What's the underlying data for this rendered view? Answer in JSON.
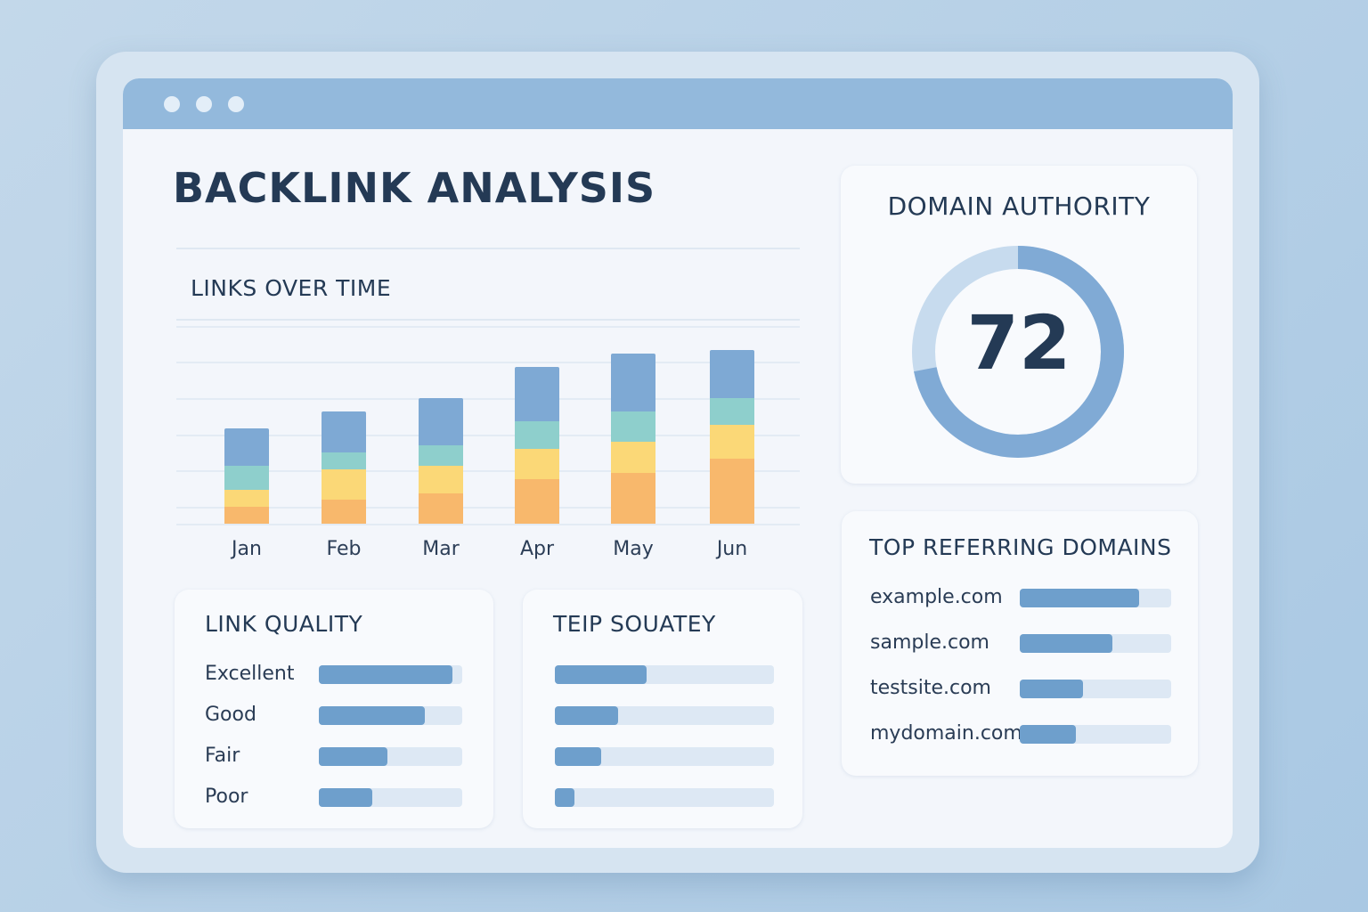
{
  "page": {
    "title": "BACKLINK ANALYSIS"
  },
  "links_over_time": {
    "title": "LINKS OVER TIME",
    "colors": [
      "#f8b86c",
      "#fbd877",
      "#8ecfcc",
      "#7ea9d4"
    ],
    "chart_data": {
      "type": "bar",
      "stacked": true,
      "categories": [
        "Jan",
        "Feb",
        "Mar",
        "Apr",
        "May",
        "Jun"
      ],
      "ylim": [
        0,
        55
      ],
      "grid": true,
      "series": [
        {
          "values": [
            5,
            7,
            9,
            13,
            15,
            19
          ]
        },
        {
          "values": [
            5,
            9,
            8,
            9,
            9,
            10
          ]
        },
        {
          "values": [
            7,
            5,
            6,
            8,
            9,
            8
          ]
        },
        {
          "values": [
            11,
            12,
            14,
            16,
            17,
            14
          ]
        }
      ]
    }
  },
  "domain_authority": {
    "title": "DOMAIN AUTHORITY",
    "value": "72",
    "percent": 72
  },
  "link_quality": {
    "title": "LINK QUALITY",
    "items": [
      {
        "label": "Excellent",
        "fraction": 0.93
      },
      {
        "label": "Good",
        "fraction": 0.74
      },
      {
        "label": "Fair",
        "fraction": 0.48
      },
      {
        "label": "Poor",
        "fraction": 0.37
      }
    ]
  },
  "second_panel": {
    "title": "TEIP SOUATEY",
    "items": [
      {
        "fraction": 0.42
      },
      {
        "fraction": 0.29
      },
      {
        "fraction": 0.21
      },
      {
        "fraction": 0.09
      }
    ]
  },
  "top_referring_domains": {
    "title": "TOP REFERRING DOMAINS",
    "items": [
      {
        "label": "example.com",
        "fraction": 0.79
      },
      {
        "label": "sample.com",
        "fraction": 0.61
      },
      {
        "label": "testsite.com",
        "fraction": 0.42
      },
      {
        "label": "mydomain.com",
        "fraction": 0.37
      }
    ]
  }
}
